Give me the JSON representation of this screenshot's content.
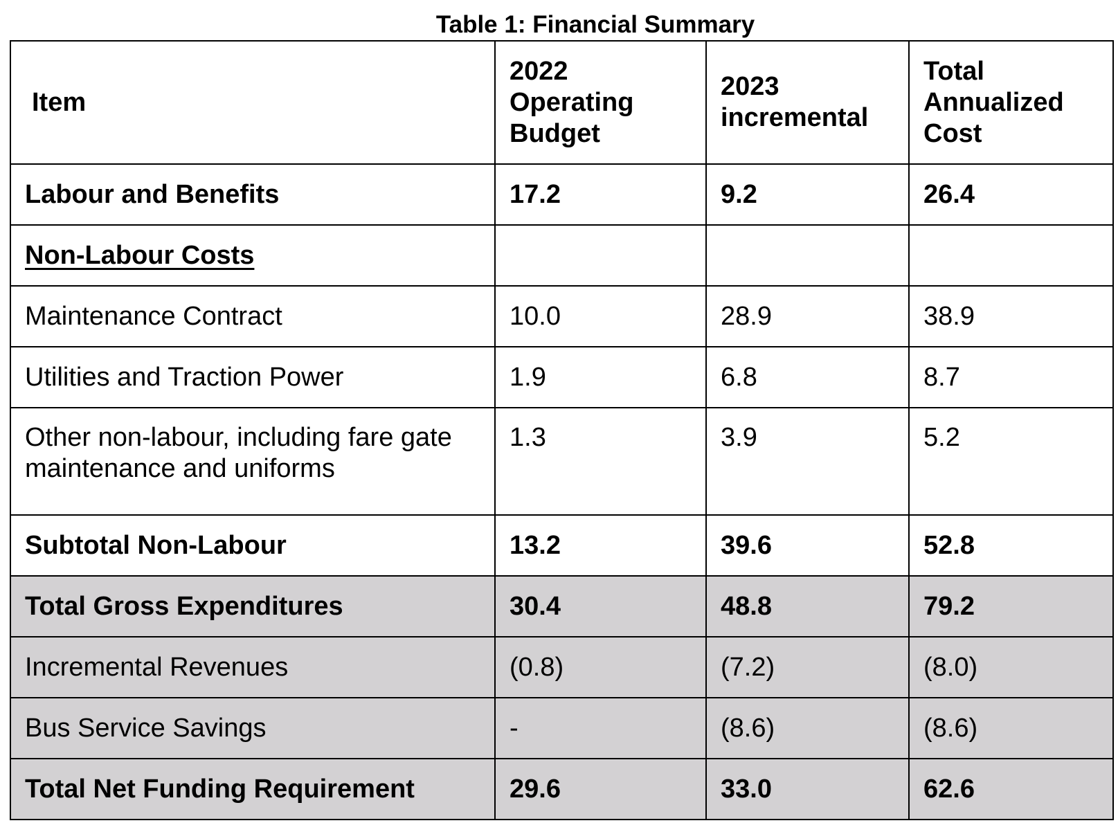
{
  "caption": "Table 1: Financial Summary",
  "headers": {
    "item": "Item",
    "col2": "2022 Operating Budget",
    "col3": "2023 incremental",
    "col4": "Total Annualized Cost"
  },
  "rows": [
    {
      "item": "Labour and Benefits",
      "v2022": "17.2",
      "v2023": "9.2",
      "total": "26.4"
    },
    {
      "item": "Non-Labour Costs",
      "v2022": "",
      "v2023": "",
      "total": ""
    },
    {
      "item": "Maintenance Contract",
      "v2022": "10.0",
      "v2023": "28.9",
      "total": "38.9"
    },
    {
      "item": "Utilities and Traction Power",
      "v2022": "1.9",
      "v2023": "6.8",
      "total": "8.7"
    },
    {
      "item": "Other non-labour, including fare gate maintenance and uniforms",
      "v2022": "1.3",
      "v2023": "3.9",
      "total": "5.2"
    },
    {
      "item": "Subtotal Non-Labour",
      "v2022": "13.2",
      "v2023": "39.6",
      "total": "52.8"
    },
    {
      "item": "Total Gross Expenditures",
      "v2022": "30.4",
      "v2023": "48.8",
      "total": "79.2"
    },
    {
      "item": "Incremental Revenues",
      "v2022": "(0.8)",
      "v2023": "(7.2)",
      "total": "(8.0)"
    },
    {
      "item": "Bus Service Savings",
      "v2022": "-",
      "v2023": "(8.6)",
      "total": "(8.6)"
    },
    {
      "item": "Total Net Funding Requirement",
      "v2022": "29.6",
      "v2023": "33.0",
      "total": "62.6"
    }
  ],
  "colors": {
    "shaded_row": "#d3d1d3",
    "border": "#000000"
  }
}
